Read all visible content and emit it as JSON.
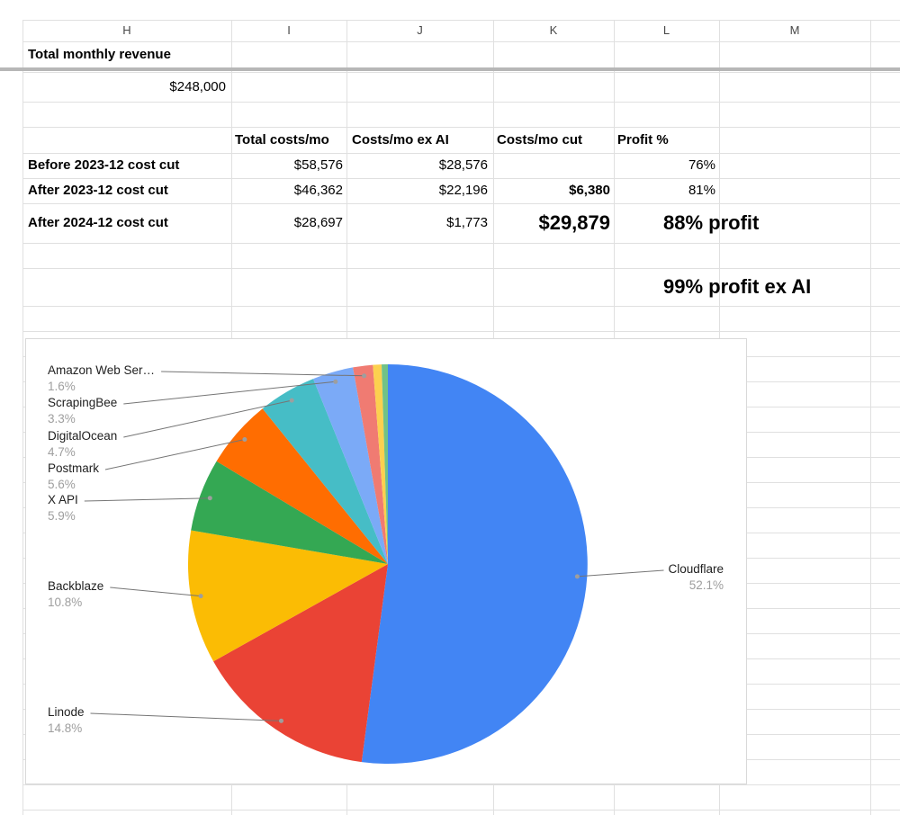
{
  "sheet": {
    "column_headers": [
      "H",
      "I",
      "J",
      "K",
      "L",
      "M",
      ""
    ],
    "revenue": {
      "label": "Total monthly revenue",
      "value": "$248,000"
    },
    "cost_table": {
      "headers": {
        "total": "Total costs/mo",
        "ex_ai": "Costs/mo ex AI",
        "cut": "Costs/mo cut",
        "profit": "Profit %"
      },
      "rows": [
        {
          "label": "Before 2023-12 cost cut",
          "total": "$58,576",
          "ex_ai": "$28,576",
          "cut": "",
          "profit": "76%"
        },
        {
          "label": "After 2023-12 cost cut",
          "total": "$46,362",
          "ex_ai": "$22,196",
          "cut": "$6,380",
          "profit": "81%"
        },
        {
          "label": "After 2024-12 cost cut",
          "total": "$28,697",
          "ex_ai": "$1,773",
          "cut": "$29,879",
          "profit": "88% profit"
        }
      ],
      "profit_ex_ai_note": "99% profit ex AI"
    }
  },
  "chart_data": {
    "type": "pie",
    "title": "",
    "legend_position": "outside-labels-with-leader-lines",
    "start_angle_deg": 0,
    "direction": "clockwise",
    "slices": [
      {
        "label": "Cloudflare",
        "pct": 52.1,
        "pct_text": "52.1%",
        "color": "#4285F4"
      },
      {
        "label": "Linode",
        "pct": 14.8,
        "pct_text": "14.8%",
        "color": "#EA4335"
      },
      {
        "label": "Backblaze",
        "pct": 10.8,
        "pct_text": "10.8%",
        "color": "#FBBC04"
      },
      {
        "label": "X API",
        "pct": 5.9,
        "pct_text": "5.9%",
        "color": "#34A853"
      },
      {
        "label": "Postmark",
        "pct": 5.6,
        "pct_text": "5.6%",
        "color": "#FF6D01"
      },
      {
        "label": "DigitalOcean",
        "pct": 4.7,
        "pct_text": "4.7%",
        "color": "#46BDC6"
      },
      {
        "label": "ScrapingBee",
        "pct": 3.3,
        "pct_text": "3.3%",
        "color": "#7BAAF7"
      },
      {
        "label": "Amazon Web Ser…",
        "pct": 1.6,
        "pct_text": "1.6%",
        "color": "#F07B72"
      },
      {
        "label": "",
        "pct": 0.7,
        "pct_text": "",
        "color": "#FCD04F"
      },
      {
        "label": "",
        "pct": 0.5,
        "pct_text": "",
        "color": "#71C287"
      }
    ],
    "labeled_slices": [
      0,
      1,
      2,
      3,
      4,
      5,
      6,
      7
    ]
  }
}
